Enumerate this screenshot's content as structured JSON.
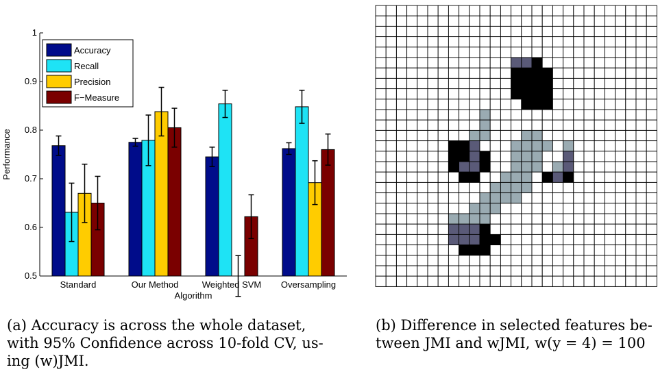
{
  "chart_data": [
    {
      "type": "bar",
      "xlabel": "Algorithm",
      "ylabel": "Performance",
      "ylim": [
        0.5,
        1
      ],
      "yticks": [
        0.5,
        0.6,
        0.7,
        0.8,
        0.9,
        1
      ],
      "ytick_labels": [
        "0.5",
        "0.6",
        "0.7",
        "0.8",
        "0.9",
        "1"
      ],
      "grid": false,
      "legend_position": "top-left",
      "categories": [
        "Standard",
        "Our Method",
        "Weighted SVM",
        "Oversampling"
      ],
      "series": [
        {
          "name": "Accuracy",
          "color": "#000c8a",
          "values": [
            0.768,
            0.775,
            0.745,
            0.762
          ],
          "error": [
            0.02,
            0.008,
            0.02,
            0.012
          ]
        },
        {
          "name": "Recall",
          "color": "#1ee3f5",
          "values": [
            0.631,
            0.779,
            0.854,
            0.848
          ],
          "error": [
            0.06,
            0.052,
            0.028,
            0.034
          ]
        },
        {
          "name": "Precision",
          "color": "#ffcc00",
          "values": [
            0.67,
            0.838,
            0.5,
            0.692
          ],
          "error": [
            0.06,
            0.05,
            0.042,
            0.045
          ]
        },
        {
          "name": "F−Measure",
          "color": "#7a0000",
          "values": [
            0.65,
            0.805,
            0.622,
            0.76
          ],
          "error": [
            0.055,
            0.04,
            0.045,
            0.032
          ]
        }
      ]
    },
    {
      "type": "heatmap",
      "rows": 27,
      "cols": 27,
      "palette": {
        "0": "#ffffff",
        "1": "#000000",
        "2": "#9aabb2",
        "3": "#5a5a78"
      },
      "rle": [
        [
          [
            0,
            27
          ]
        ],
        [
          [
            0,
            27
          ]
        ],
        [
          [
            0,
            27
          ]
        ],
        [
          [
            0,
            27
          ]
        ],
        [
          [
            0,
            27
          ]
        ],
        [
          [
            0,
            13
          ],
          [
            3,
            2
          ],
          [
            1,
            1
          ],
          [
            0,
            11
          ]
        ],
        [
          [
            0,
            13
          ],
          [
            1,
            4
          ],
          [
            0,
            10
          ]
        ],
        [
          [
            0,
            13
          ],
          [
            1,
            4
          ],
          [
            0,
            10
          ]
        ],
        [
          [
            0,
            13
          ],
          [
            1,
            4
          ],
          [
            0,
            10
          ]
        ],
        [
          [
            0,
            14
          ],
          [
            1,
            3
          ],
          [
            0,
            10
          ]
        ],
        [
          [
            0,
            10
          ],
          [
            2,
            1
          ],
          [
            0,
            16
          ]
        ],
        [
          [
            0,
            10
          ],
          [
            2,
            1
          ],
          [
            0,
            16
          ]
        ],
        [
          [
            0,
            9
          ],
          [
            2,
            2
          ],
          [
            0,
            3
          ],
          [
            2,
            2
          ],
          [
            0,
            11
          ]
        ],
        [
          [
            0,
            7
          ],
          [
            1,
            2
          ],
          [
            3,
            1
          ],
          [
            0,
            3
          ],
          [
            2,
            4
          ],
          [
            0,
            1
          ],
          [
            2,
            1
          ],
          [
            0,
            8
          ]
        ],
        [
          [
            0,
            7
          ],
          [
            1,
            2
          ],
          [
            3,
            1
          ],
          [
            1,
            1
          ],
          [
            0,
            2
          ],
          [
            2,
            3
          ],
          [
            0,
            2
          ],
          [
            3,
            1
          ],
          [
            0,
            8
          ]
        ],
        [
          [
            0,
            7
          ],
          [
            1,
            1
          ],
          [
            3,
            2
          ],
          [
            1,
            1
          ],
          [
            0,
            2
          ],
          [
            2,
            3
          ],
          [
            0,
            1
          ],
          [
            2,
            1
          ],
          [
            3,
            1
          ],
          [
            0,
            8
          ]
        ],
        [
          [
            0,
            8
          ],
          [
            1,
            2
          ],
          [
            0,
            2
          ],
          [
            2,
            3
          ],
          [
            0,
            1
          ],
          [
            1,
            1
          ],
          [
            3,
            1
          ],
          [
            1,
            1
          ],
          [
            0,
            8
          ]
        ],
        [
          [
            0,
            11
          ],
          [
            2,
            4
          ],
          [
            0,
            12
          ]
        ],
        [
          [
            0,
            10
          ],
          [
            2,
            4
          ],
          [
            0,
            13
          ]
        ],
        [
          [
            0,
            9
          ],
          [
            2,
            3
          ],
          [
            0,
            15
          ]
        ],
        [
          [
            0,
            7
          ],
          [
            2,
            4
          ],
          [
            0,
            16
          ]
        ],
        [
          [
            0,
            7
          ],
          [
            3,
            3
          ],
          [
            1,
            1
          ],
          [
            0,
            16
          ]
        ],
        [
          [
            0,
            7
          ],
          [
            3,
            3
          ],
          [
            1,
            2
          ],
          [
            0,
            15
          ]
        ],
        [
          [
            0,
            8
          ],
          [
            1,
            3
          ],
          [
            0,
            16
          ]
        ],
        [
          [
            0,
            27
          ]
        ],
        [
          [
            0,
            27
          ]
        ],
        [
          [
            0,
            27
          ]
        ]
      ]
    }
  ],
  "captions": {
    "a": {
      "lines": [
        "(a) Accuracy is across the whole dataset,",
        "with 95% Confidence across 10-fold CV, us-",
        "ing (w)JMI."
      ]
    },
    "b": {
      "lines": [
        "(b) Difference in selected features be-",
        "tween JMI and wJMI, w(y = 4) = 100"
      ]
    }
  }
}
